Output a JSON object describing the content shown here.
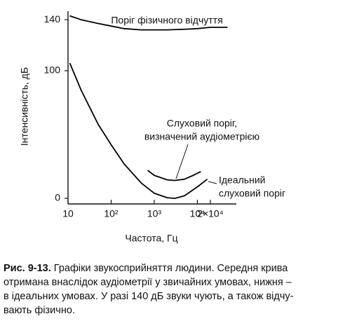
{
  "chart_data": {
    "type": "line",
    "x_label": "Частота, Гц",
    "y_label": "Інтенсивність, дБ",
    "xscale": "log",
    "xlim": [
      10,
      80000
    ],
    "xticks": [
      10,
      {
        "value": 100,
        "label": "10²"
      },
      {
        "value": 1000,
        "label": "10³"
      },
      {
        "value": 10000,
        "label": "10⁴"
      },
      {
        "value": 20000,
        "label": "2×10⁴"
      }
    ],
    "ylim": [
      -4,
      144
    ],
    "yticks": [
      0,
      100,
      140
    ],
    "series": [
      {
        "color": "#000000",
        "x": [
          11,
          20,
          50,
          100,
          200,
          500,
          1000,
          2000,
          5000,
          10000,
          20000,
          50000
        ],
        "values": [
          143,
          140,
          137,
          135,
          133,
          132,
          132,
          132,
          132.5,
          133,
          134,
          134
        ]
      },
      {
        "color": "#000000",
        "x": [
          11,
          20,
          50,
          100,
          200,
          500,
          1000,
          2000,
          3000,
          5000,
          10000,
          17000
        ],
        "values": [
          106,
          85,
          58,
          42,
          27,
          12,
          4,
          0.5,
          0,
          2,
          9,
          15
        ]
      },
      {
        "color": "#000000",
        "x": [
          700,
          1000,
          2000,
          3000,
          5000,
          8000,
          12000
        ],
        "values": [
          22,
          18,
          14.5,
          14,
          15,
          18,
          21
        ]
      }
    ],
    "annotations": [
      [
        "Поріг фізичного відчуття"
      ],
      [
        "Слуховий поріг,",
        "визначений аудіометрією"
      ],
      [
        "Ідеальний",
        "слуховий поріг"
      ]
    ],
    "caption": {
      "label": "Рис. 9-13.",
      "lines": [
        " Графіки звукосприйняття людини. Середня крива",
        "отримана внаслідок аудіометрії у звичайних умовах, нижня –",
        "в ідеальних умовах. У разі 140 дБ звуки чують, а також відчу-",
        "вають фізично."
      ]
    }
  }
}
